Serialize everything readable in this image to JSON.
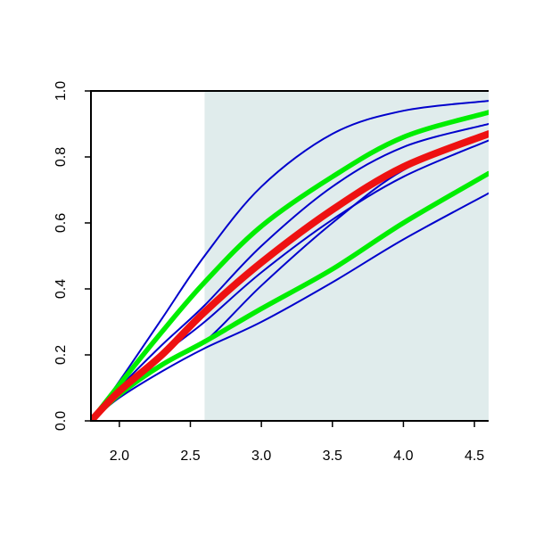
{
  "chart_data": {
    "type": "line",
    "title": "",
    "xlabel": "",
    "ylabel": "",
    "xlim": [
      1.8,
      4.6
    ],
    "ylim": [
      0.0,
      1.0
    ],
    "x_ticks": [
      2.0,
      2.5,
      3.0,
      3.5,
      4.0,
      4.5
    ],
    "x_tick_labels": [
      "2.0",
      "2.5",
      "3.0",
      "3.5",
      "4.0",
      "4.5"
    ],
    "y_ticks": [
      0.0,
      0.2,
      0.4,
      0.6,
      0.8,
      1.0
    ],
    "y_tick_labels": [
      "0.0",
      "0.2",
      "0.4",
      "0.6",
      "0.8",
      "1.0"
    ],
    "shaded_region": {
      "x_start": 2.6,
      "x_end": 4.6,
      "color": "#e0ecec"
    },
    "grid": false,
    "series": [
      {
        "color": "#0000cc",
        "weight": "thin",
        "x": [
          1.8,
          2.0,
          2.3,
          2.6,
          3.0,
          3.5,
          4.0,
          4.6
        ],
        "y": [
          0.0,
          0.12,
          0.31,
          0.5,
          0.71,
          0.87,
          0.94,
          0.97
        ]
      },
      {
        "color": "#0000cc",
        "weight": "thin",
        "x": [
          1.8,
          2.0,
          2.3,
          2.6,
          3.0,
          3.5,
          4.0,
          4.6
        ],
        "y": [
          0.0,
          0.1,
          0.23,
          0.35,
          0.53,
          0.71,
          0.83,
          0.9
        ]
      },
      {
        "color": "#0000cc",
        "weight": "thin",
        "x": [
          1.8,
          2.0,
          2.3,
          2.6,
          3.0,
          3.5,
          4.0,
          4.6
        ],
        "y": [
          0.0,
          0.09,
          0.2,
          0.3,
          0.45,
          0.61,
          0.74,
          0.85
        ]
      },
      {
        "color": "#0000cc",
        "weight": "thin",
        "x": [
          1.8,
          2.0,
          2.3,
          2.6,
          3.0,
          3.5,
          4.0,
          4.6
        ],
        "y": [
          0.0,
          0.08,
          0.17,
          0.24,
          0.41,
          0.6,
          0.76,
          0.87
        ]
      },
      {
        "color": "#0000cc",
        "weight": "thin",
        "x": [
          1.8,
          2.0,
          2.3,
          2.6,
          3.0,
          3.5,
          4.0,
          4.6
        ],
        "y": [
          0.0,
          0.07,
          0.15,
          0.22,
          0.3,
          0.42,
          0.55,
          0.69
        ]
      },
      {
        "color": "#00ee00",
        "weight": "thick",
        "x": [
          1.8,
          2.0,
          2.3,
          2.6,
          3.0,
          3.5,
          4.0,
          4.6
        ],
        "y": [
          0.0,
          0.11,
          0.27,
          0.42,
          0.59,
          0.74,
          0.86,
          0.935
        ]
      },
      {
        "color": "#00ee00",
        "weight": "thick",
        "x": [
          1.8,
          2.0,
          2.3,
          2.6,
          3.0,
          3.5,
          4.0,
          4.6
        ],
        "y": [
          0.0,
          0.08,
          0.17,
          0.24,
          0.34,
          0.46,
          0.6,
          0.75
        ]
      },
      {
        "color": "#ee1111",
        "weight": "thickest",
        "x": [
          1.8,
          2.0,
          2.3,
          2.6,
          3.0,
          3.5,
          4.0,
          4.6
        ],
        "y": [
          0.0,
          0.09,
          0.2,
          0.33,
          0.48,
          0.64,
          0.77,
          0.87
        ]
      }
    ]
  }
}
